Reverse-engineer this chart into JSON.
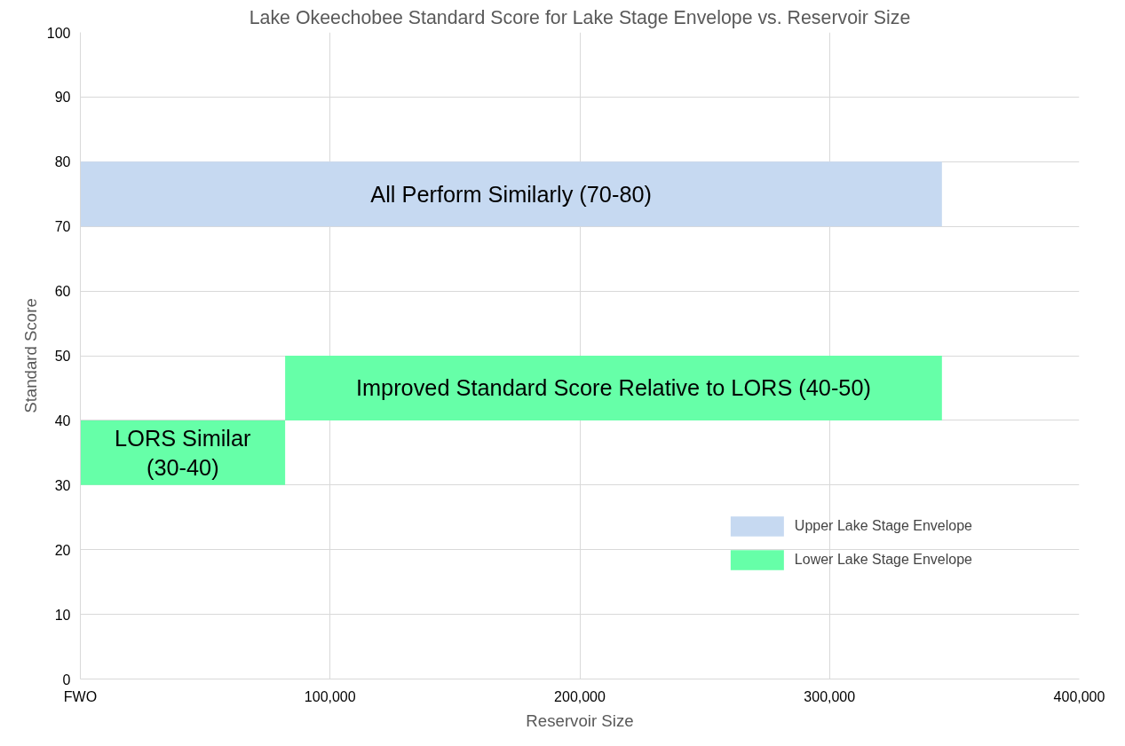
{
  "chart_data": {
    "type": "area",
    "title": "Lake Okeechobee Standard Score for Lake Stage Envelope vs. Reservoir Size",
    "xlabel": "Reservoir Size",
    "ylabel": "Standard Score",
    "series": [
      {
        "name": "Upper Lake Stage Envelope",
        "color": "#c6d9f1",
        "x": [
          0,
          345000
        ],
        "values": [
          null,
          null
        ],
        "lower": [
          70,
          70
        ],
        "upper": [
          80,
          80
        ]
      },
      {
        "name": "Lower Lake Stage Envelope",
        "color": "#66ffa8",
        "x": [
          0,
          82000,
          82000,
          345000
        ],
        "values": [
          null,
          null,
          null,
          null
        ],
        "lower": [
          30,
          30,
          40,
          40
        ],
        "upper": [
          40,
          40,
          50,
          50
        ]
      }
    ],
    "annotations": [
      "All Perform Similarly (70-80)",
      "Improved Standard Score Relative to LORS (40-50)",
      "LORS Similar\n(30-40)"
    ],
    "xlim": [
      0,
      400000
    ],
    "xticks": [
      {
        "value": 0,
        "label": "FWO"
      },
      {
        "value": 100000,
        "label": "100,000"
      },
      {
        "value": 200000,
        "label": "200,000"
      },
      {
        "value": 300000,
        "label": "300,000"
      },
      {
        "value": 400000,
        "label": "400,000"
      }
    ],
    "ylim": [
      0,
      100
    ],
    "yticks": [
      0,
      10,
      20,
      30,
      40,
      50,
      60,
      70,
      80,
      90,
      100
    ],
    "grid": true,
    "legend": "bottom right"
  }
}
